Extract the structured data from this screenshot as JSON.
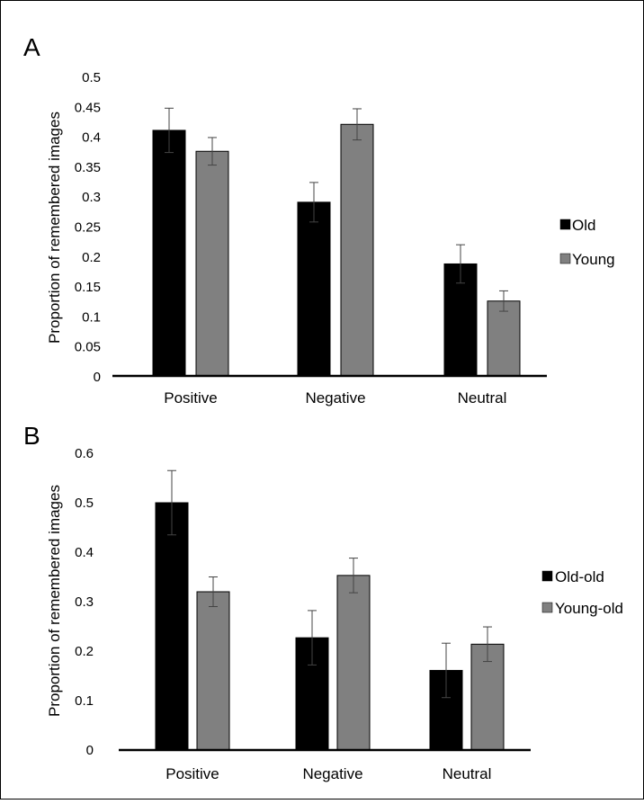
{
  "chart_data": [
    {
      "panel_label": "A",
      "type": "bar",
      "ylabel": "Proportion of remembered images",
      "ylim": [
        0,
        0.5
      ],
      "yticks": [
        "0",
        "0.05",
        "0.1",
        "0.15",
        "0.2",
        "0.25",
        "0.3",
        "0.35",
        "0.4",
        "0.45",
        "0.5"
      ],
      "categories": [
        "Positive",
        "Negative",
        "Neutral"
      ],
      "legend_position": "right",
      "grid": false,
      "series": [
        {
          "name": "Old",
          "color": "#000000",
          "values": [
            0.41,
            0.29,
            0.187
          ],
          "errors": [
            0.037,
            0.033,
            0.032
          ]
        },
        {
          "name": "Young",
          "color": "#808080",
          "values": [
            0.375,
            0.42,
            0.125
          ],
          "errors": [
            0.023,
            0.026,
            0.017
          ]
        }
      ]
    },
    {
      "panel_label": "B",
      "type": "bar",
      "ylabel": "Proportion of remembered images",
      "ylim": [
        0,
        0.6
      ],
      "yticks": [
        "0",
        "0.1",
        "0.2",
        "0.3",
        "0.4",
        "0.5",
        "0.6"
      ],
      "categories": [
        "Positive",
        "Negative",
        "Neutral"
      ],
      "legend_position": "right",
      "grid": false,
      "series": [
        {
          "name": "Old-old",
          "color": "#000000",
          "values": [
            0.5,
            0.227,
            0.161
          ],
          "errors": [
            0.065,
            0.055,
            0.055
          ]
        },
        {
          "name": "Young-old",
          "color": "#808080",
          "values": [
            0.32,
            0.353,
            0.214
          ],
          "errors": [
            0.03,
            0.035,
            0.035
          ]
        }
      ]
    }
  ]
}
